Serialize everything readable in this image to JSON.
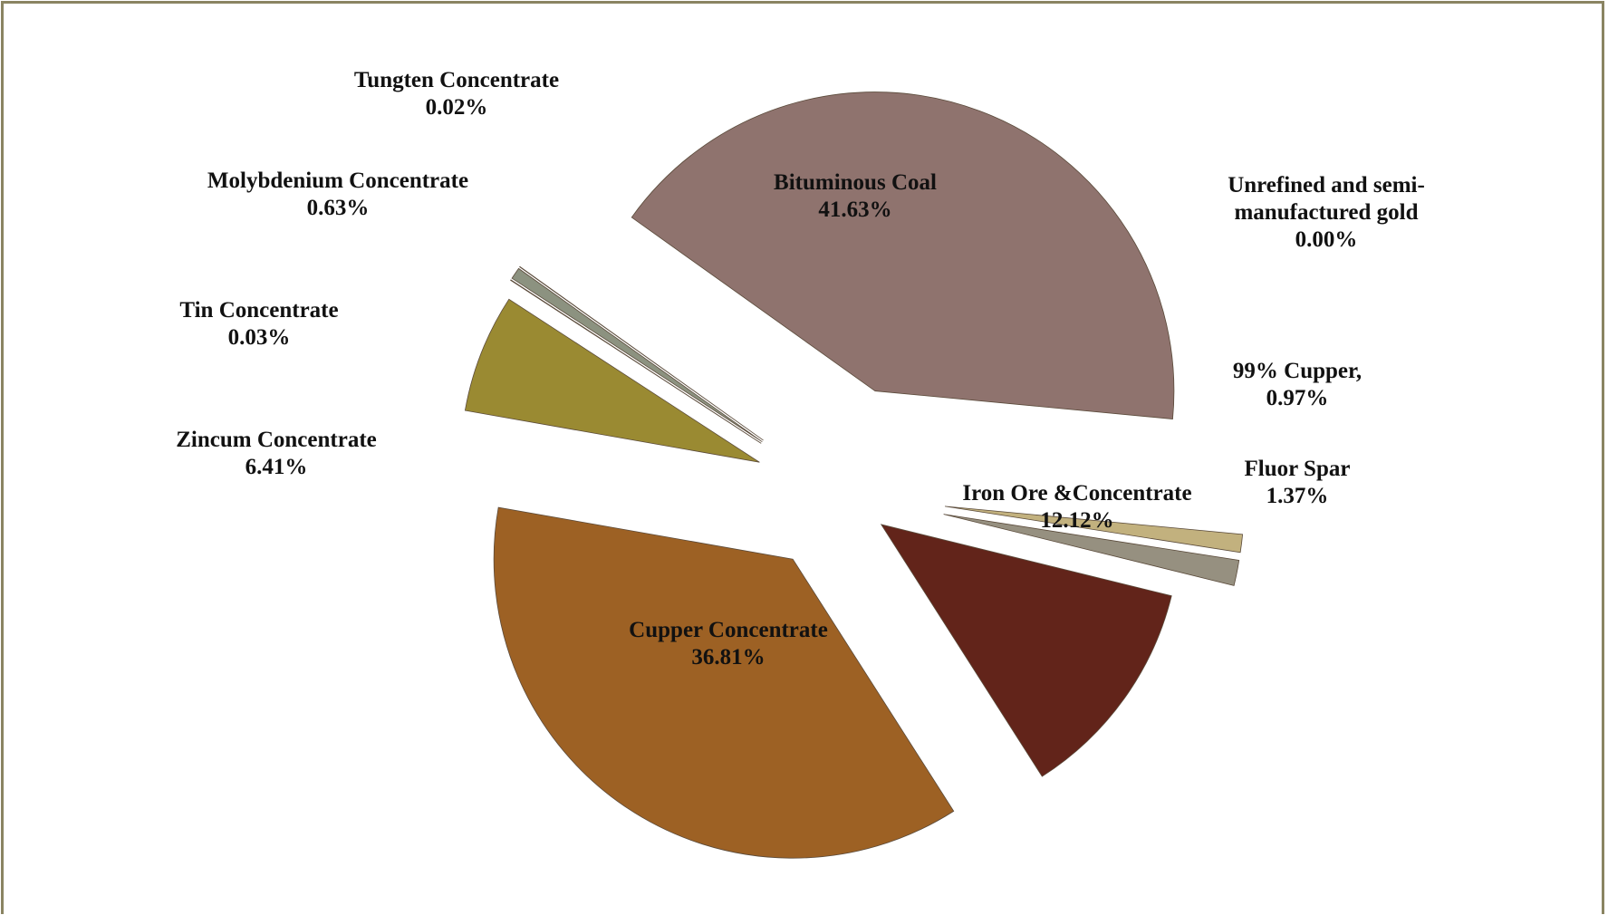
{
  "chart_data": {
    "type": "pie",
    "exploded": true,
    "legend": "none",
    "slices": [
      {
        "name": "Bituminous Coal",
        "value": 41.63,
        "label": "41.63%",
        "color": "#8f736e"
      },
      {
        "name": "Unrefined and semi-manufactured gold",
        "label_lines": [
          "Unrefined and semi-",
          "manufactured gold"
        ],
        "value": 0.0,
        "label": "0.00%",
        "color": "#ffffff"
      },
      {
        "name": "99%  Cupper,",
        "value": 0.97,
        "label": "0.97%",
        "color": "#c2b17e"
      },
      {
        "name": "Fluor Spar",
        "value": 1.37,
        "label": "1.37%",
        "color": "#969080"
      },
      {
        "name": "Iron Ore &Concentrate",
        "value": 12.12,
        "label": "12.12%",
        "color": "#62241a"
      },
      {
        "name": "Cupper Concentrate",
        "value": 36.81,
        "label": "36.81%",
        "color": "#9d6124"
      },
      {
        "name": "Zincum Concentrate",
        "value": 6.41,
        "label": "6.41%",
        "color": "#9a8a32"
      },
      {
        "name": "Tin Concentrate",
        "value": 0.03,
        "label": "0.03%",
        "color": "#8c5a50"
      },
      {
        "name": "Molybdenium Concentrate",
        "value": 0.63,
        "label": "0.63%",
        "color": "#8c9280"
      },
      {
        "name": "Tungten Concentrate",
        "value": 0.02,
        "label": "0.02%",
        "color": "#b0a890"
      }
    ]
  }
}
